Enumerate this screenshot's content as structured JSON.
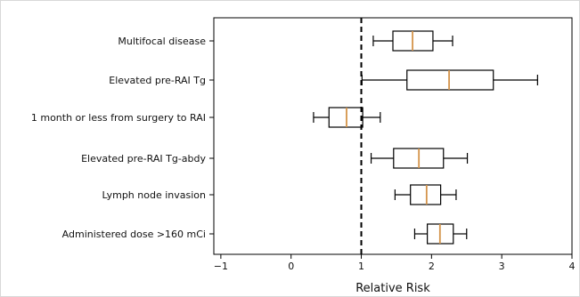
{
  "chart_data": {
    "type": "boxplot",
    "orientation": "horizontal",
    "title": "",
    "xlabel": "Relative Risk",
    "ylabel": "",
    "xlim": [
      -1.1,
      4.0
    ],
    "x_ticks": [
      -1,
      0,
      1,
      2,
      3,
      4
    ],
    "reference_line": {
      "x": 1,
      "style": "dashed"
    },
    "grid": false,
    "colors": {
      "median": "#d4944a",
      "box": "#000000",
      "reference": "#000000"
    },
    "categories": [
      "Multifocal disease",
      "Elevated pre-RAI Tg",
      "1 month or less from surgery to RAI",
      "Elevated pre-RAI Tg-abdy",
      "Lymph node invasion",
      "Administered dose >160 mCi"
    ],
    "boxes": [
      {
        "whisker_low": 1.17,
        "q1": 1.45,
        "median": 1.73,
        "q3": 2.02,
        "whisker_high": 2.3
      },
      {
        "whisker_low": 1.01,
        "q1": 1.65,
        "median": 2.25,
        "q3": 2.88,
        "whisker_high": 3.51
      },
      {
        "whisker_low": 0.32,
        "q1": 0.54,
        "median": 0.79,
        "q3": 1.02,
        "whisker_high": 1.27
      },
      {
        "whisker_low": 1.14,
        "q1": 1.46,
        "median": 1.82,
        "q3": 2.17,
        "whisker_high": 2.51
      },
      {
        "whisker_low": 1.48,
        "q1": 1.7,
        "median": 1.93,
        "q3": 2.13,
        "whisker_high": 2.35
      },
      {
        "whisker_low": 1.76,
        "q1": 1.94,
        "median": 2.12,
        "q3": 2.31,
        "whisker_high": 2.5
      }
    ]
  }
}
